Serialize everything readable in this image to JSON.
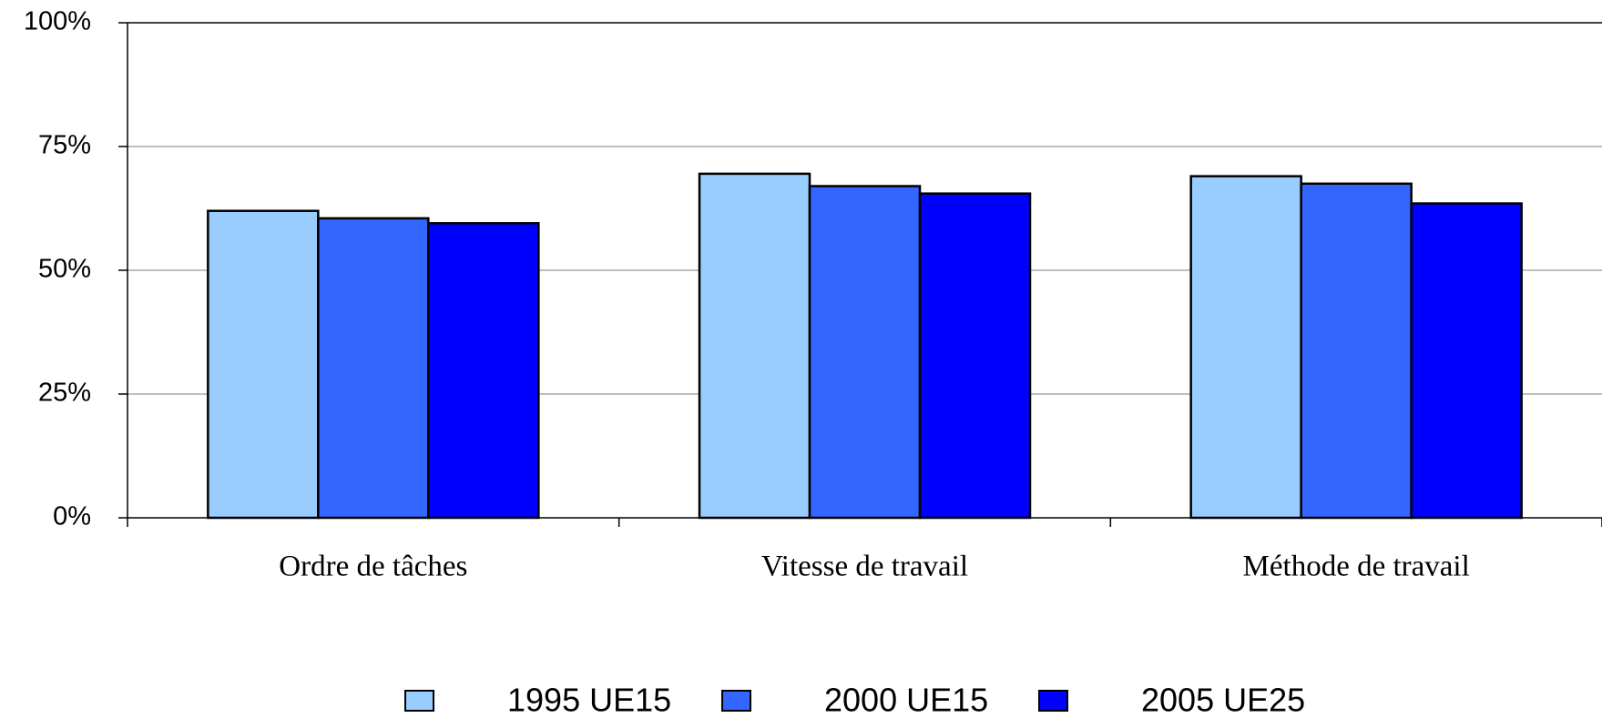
{
  "chart_data": {
    "type": "bar",
    "categories": [
      "Ordre de tâches",
      "Vitesse de travail",
      "Méthode de travail"
    ],
    "series": [
      {
        "name": "1995 UE15",
        "color": "#99ccff",
        "values": [
          62,
          69.5,
          69
        ]
      },
      {
        "name": "2000 UE15",
        "color": "#3366ff",
        "values": [
          60.5,
          67,
          67.5
        ]
      },
      {
        "name": "2005 UE25",
        "color": "#0000ff",
        "values": [
          59.5,
          65.5,
          63.5
        ]
      }
    ],
    "ylim": [
      0,
      100
    ],
    "yticks": [
      {
        "value": 0,
        "label": "0%"
      },
      {
        "value": 25,
        "label": "25%"
      },
      {
        "value": 50,
        "label": "50%"
      },
      {
        "value": 75,
        "label": "75%"
      },
      {
        "value": 100,
        "label": "100%"
      }
    ],
    "grid": true,
    "legend": "bottom"
  }
}
